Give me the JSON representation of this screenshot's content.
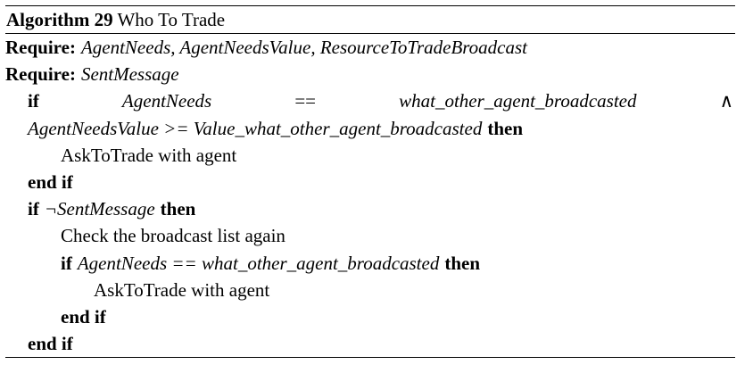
{
  "algorithm": {
    "number_label": "Algorithm 29",
    "title": "Who To Trade",
    "require_keyword": "Require:",
    "require_1": "AgentNeeds, AgentNeedsValue, ResourceToTradeBroadcast",
    "require_2": "SentMessage",
    "kw_if": "if",
    "kw_then": "then",
    "kw_end_if": "end if",
    "line_if1_a": "AgentNeeds",
    "line_if1_op": "==",
    "line_if1_b": "what_other_agent_broadcasted",
    "line_if1_and": "∧",
    "line_if1_cont": "AgentNeedsValue >= Value_what_other_agent_broadcasted",
    "ask_to_trade": "AskToTrade with agent",
    "not_sent": "¬SentMessage",
    "check_list": "Check the broadcast list again",
    "inner_if_cond": "AgentNeeds == what_other_agent_broadcasted"
  }
}
